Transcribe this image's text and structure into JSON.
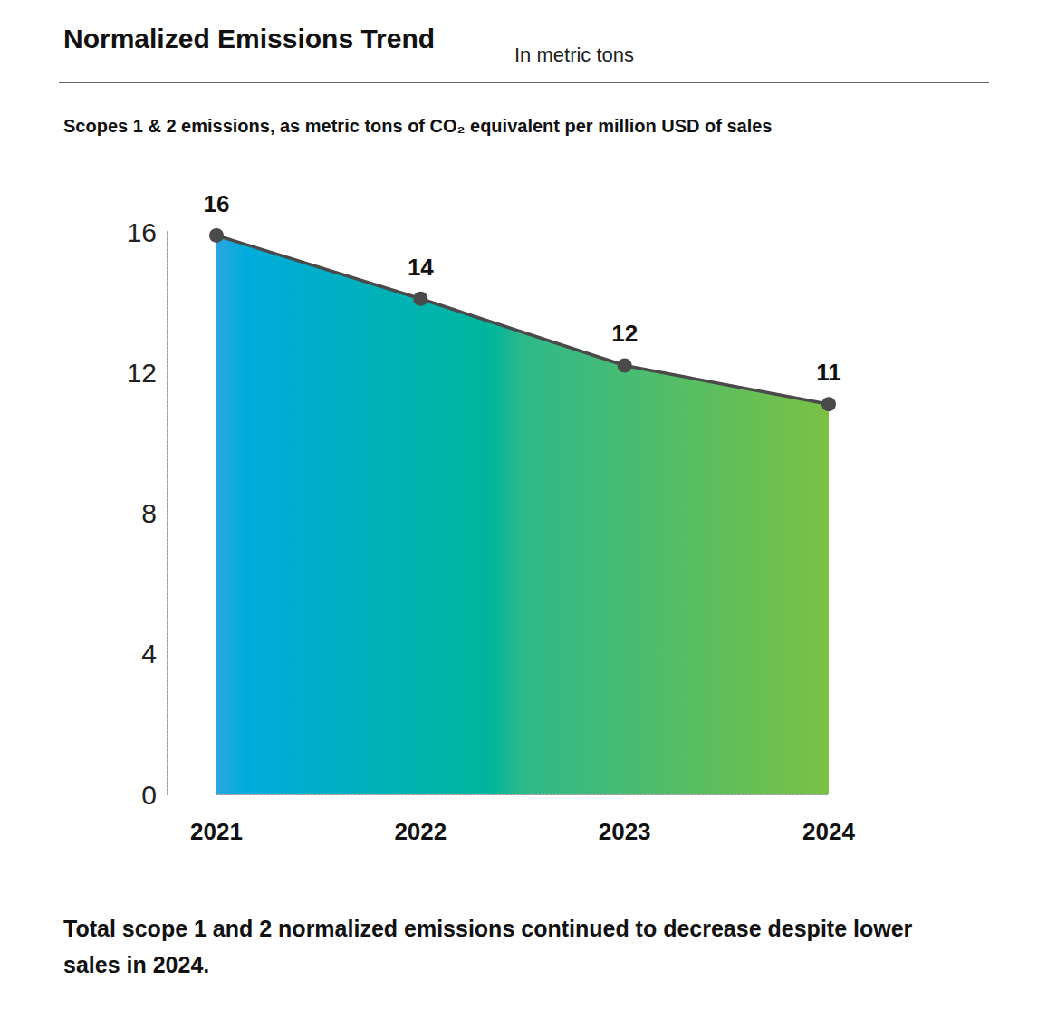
{
  "chart_data": {
    "type": "line",
    "title": "Normalized Emissions Trend",
    "subtitle": "In metric tons",
    "ylabel": "Scopes 1 & 2 emissions, as metric tons of CO₂ equivalent per million USD of sales",
    "note": "Total scope 1 and 2 normalized emissions continued to decrease despite lower sales in 2024.",
    "categories": [
      "2021",
      "2022",
      "2023",
      "2024"
    ],
    "values": [
      15.9,
      14.1,
      12.2,
      11.1
    ],
    "value_labels": [
      "16",
      "14",
      "12",
      "11"
    ],
    "color": "#4a4a4a",
    "marker": "circle",
    "ylim": [
      0,
      16
    ],
    "yticks": [
      0,
      4,
      8,
      12,
      16
    ],
    "grid": false,
    "data_labels": true
  }
}
